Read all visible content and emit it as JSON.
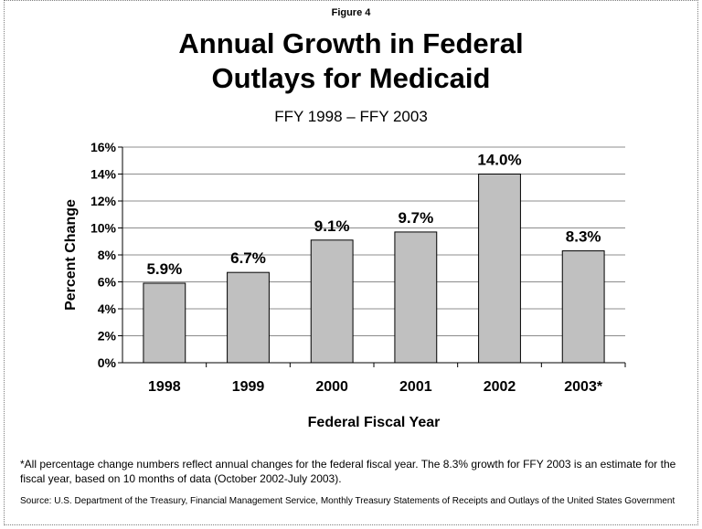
{
  "figure_label": "Figure 4",
  "title_line1": "Annual Growth in Federal",
  "title_line2": "Outlays for Medicaid",
  "subtitle": "FFY 1998 – FFY 2003",
  "footnote": "*All percentage change numbers reflect annual changes for the federal fiscal year. The 8.3% growth for FFY 2003 is an estimate for the fiscal year, based on 10 months of data (October 2002-July 2003).",
  "source": "Source: U.S. Department of the Treasury, Financial Management Service, Monthly Treasury Statements of Receipts and Outlays of the United States Government",
  "chart_data": {
    "type": "bar",
    "categories": [
      "1998",
      "1999",
      "2000",
      "2001",
      "2002",
      "2003*"
    ],
    "values": [
      5.9,
      6.7,
      9.1,
      9.7,
      14.0,
      8.3
    ],
    "data_labels": [
      "5.9%",
      "6.7%",
      "9.1%",
      "9.7%",
      "14.0%",
      "8.3%"
    ],
    "xlabel": "Federal Fiscal Year",
    "ylabel": "Percent Change",
    "ylim": [
      0,
      16
    ],
    "y_ticks": [
      "0%",
      "2%",
      "4%",
      "6%",
      "8%",
      "10%",
      "12%",
      "14%",
      "16%"
    ],
    "grid": true,
    "legend": "none",
    "bar_color": "#c0c0c0"
  }
}
